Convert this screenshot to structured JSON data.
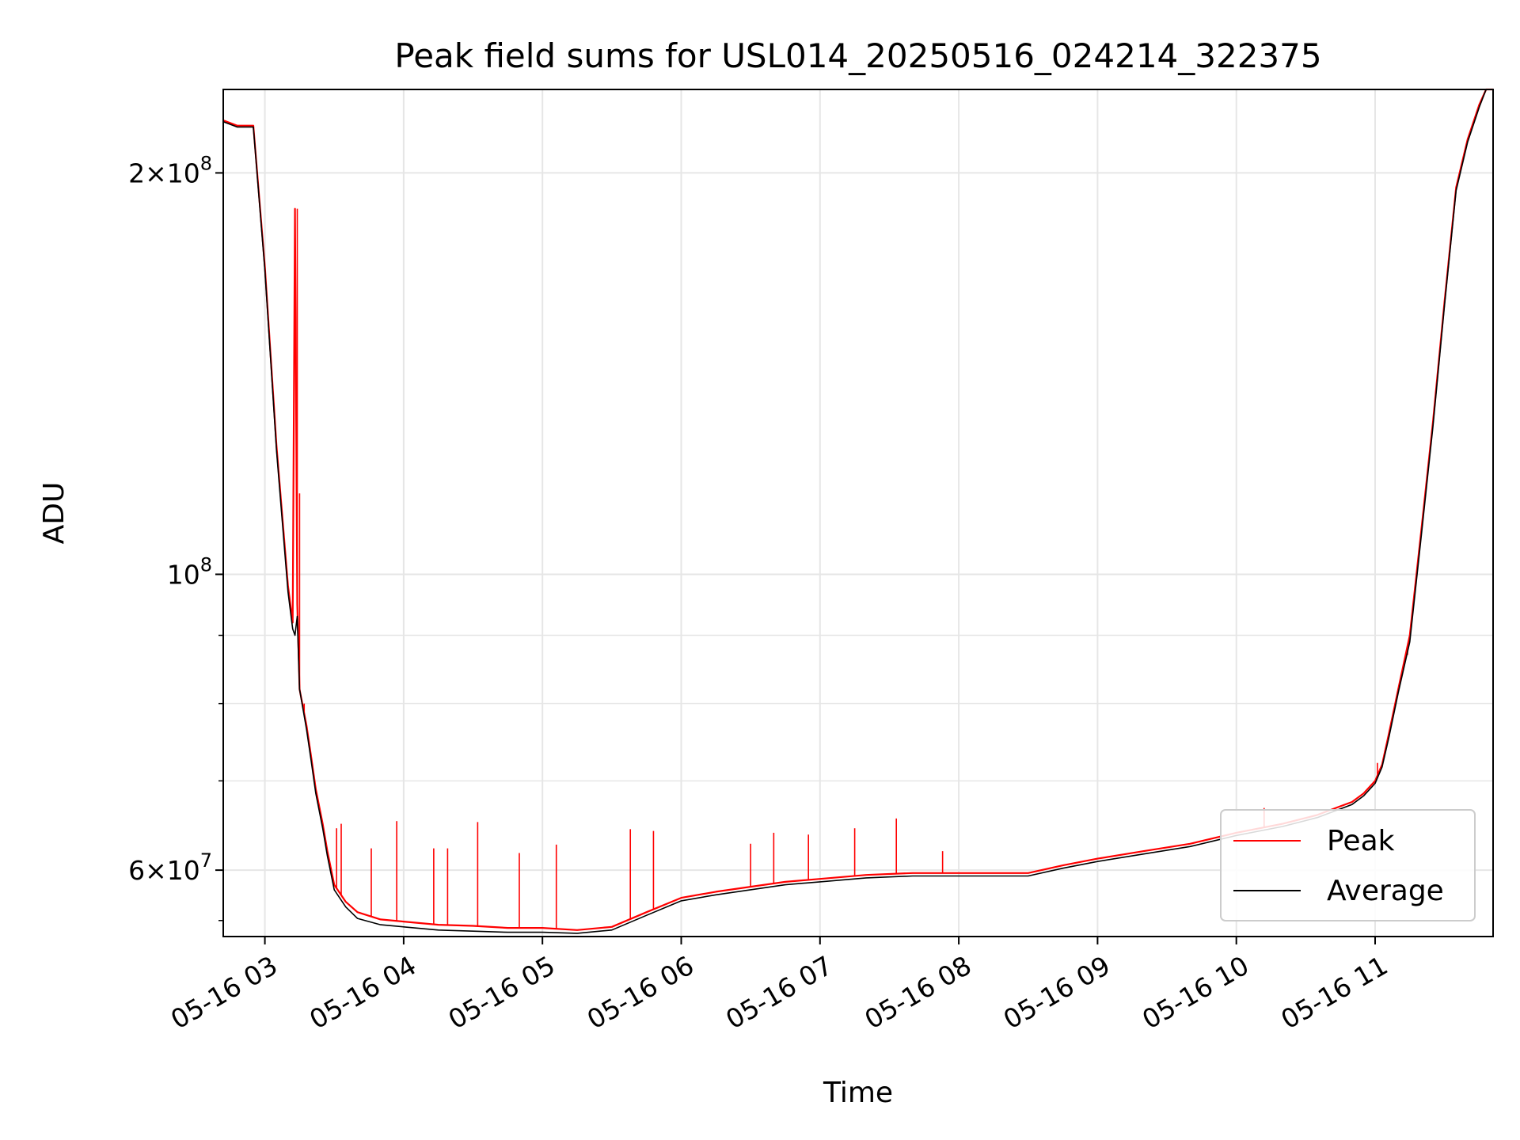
{
  "chart_data": {
    "type": "line",
    "title": "Peak field sums for USL014_20250516_024214_322375",
    "xlabel": "Time",
    "ylabel": "ADU",
    "yscale": "log",
    "ylim": [
      53500000,
      231000000
    ],
    "xlim": [
      "05-16 02:42",
      "05-16 11:51"
    ],
    "grid": true,
    "legend_position": "lower right",
    "x_ticks": [
      "05-16 03",
      "05-16 04",
      "05-16 05",
      "05-16 06",
      "05-16 07",
      "05-16 08",
      "05-16 09",
      "05-16 10",
      "05-16 11"
    ],
    "y_ticks": [
      {
        "value": 200000000,
        "base": "2×10",
        "exp": "8"
      },
      {
        "value": 100000000,
        "base": "10",
        "exp": "8"
      },
      {
        "value": 60000000,
        "base": "6×10",
        "exp": "7"
      }
    ],
    "series": [
      {
        "name": "Peak",
        "color": "#ff0000",
        "x": [
          "05-16 02:42",
          "05-16 02:48",
          "05-16 02:50",
          "05-16 02:52",
          "05-16 02:55",
          "05-16 03:00",
          "05-16 03:05",
          "05-16 03:10",
          "05-16 03:12",
          "05-16 03:13",
          "05-16 03:14",
          "05-16 03:15",
          "05-16 03:18",
          "05-16 03:20",
          "05-16 03:22",
          "05-16 03:25",
          "05-16 03:27",
          "05-16 03:30",
          "05-16 03:35",
          "05-16 03:40",
          "05-16 03:50",
          "05-16 04:00",
          "05-16 04:15",
          "05-16 04:30",
          "05-16 04:45",
          "05-16 05:00",
          "05-16 05:15",
          "05-16 05:30",
          "05-16 05:45",
          "05-16 06:00",
          "05-16 06:15",
          "05-16 06:30",
          "05-16 06:45",
          "05-16 07:00",
          "05-16 07:20",
          "05-16 07:40",
          "05-16 08:00",
          "05-16 08:20",
          "05-16 08:30",
          "05-16 08:45",
          "05-16 09:00",
          "05-16 09:20",
          "05-16 09:40",
          "05-16 10:00",
          "05-16 10:20",
          "05-16 10:35",
          "05-16 10:40",
          "05-16 10:45",
          "05-16 10:50",
          "05-16 10:55",
          "05-16 11:00",
          "05-16 11:03",
          "05-16 11:06",
          "05-16 11:10",
          "05-16 11:15",
          "05-16 11:20",
          "05-16 11:25",
          "05-16 11:30",
          "05-16 11:35",
          "05-16 11:40",
          "05-16 11:45",
          "05-16 11:48",
          "05-16 11:51"
        ],
        "y": [
          219000000,
          217000000,
          217000000,
          217000000,
          217000000,
          170000000,
          125000000,
          98000000,
          92000000,
          188000000,
          95000000,
          82000000,
          77000000,
          73000000,
          69000000,
          65000000,
          62000000,
          58500000,
          56800000,
          55800000,
          55100000,
          54900000,
          54600000,
          54500000,
          54300000,
          54300000,
          54100000,
          54400000,
          55800000,
          57200000,
          57800000,
          58300000,
          58800000,
          59100000,
          59500000,
          59700000,
          59700000,
          59700000,
          59700000,
          60500000,
          61200000,
          62000000,
          62800000,
          64000000,
          65000000,
          66000000,
          66500000,
          67000000,
          67500000,
          68500000,
          70000000,
          72000000,
          76000000,
          82000000,
          90000000,
          108000000,
          130000000,
          160000000,
          195000000,
          212000000,
          225000000,
          231000000,
          231000000
        ],
        "spikes": [
          {
            "x": "05-16 03:14",
            "y": 188000000
          },
          {
            "x": "05-16 03:15",
            "y": 115000000
          },
          {
            "x": "05-16 03:17",
            "y": 80000000
          },
          {
            "x": "05-16 03:31",
            "y": 64500000
          },
          {
            "x": "05-16 03:33",
            "y": 65000000
          },
          {
            "x": "05-16 03:46",
            "y": 62300000
          },
          {
            "x": "05-16 03:57",
            "y": 65300000
          },
          {
            "x": "05-16 04:13",
            "y": 62300000
          },
          {
            "x": "05-16 04:19",
            "y": 62300000
          },
          {
            "x": "05-16 04:32",
            "y": 65200000
          },
          {
            "x": "05-16 04:50",
            "y": 61800000
          },
          {
            "x": "05-16 05:06",
            "y": 62700000
          },
          {
            "x": "05-16 05:38",
            "y": 64400000
          },
          {
            "x": "05-16 05:48",
            "y": 64200000
          },
          {
            "x": "05-16 06:30",
            "y": 62800000
          },
          {
            "x": "05-16 06:40",
            "y": 64000000
          },
          {
            "x": "05-16 06:55",
            "y": 63800000
          },
          {
            "x": "05-16 07:15",
            "y": 64500000
          },
          {
            "x": "05-16 07:33",
            "y": 65600000
          },
          {
            "x": "05-16 07:53",
            "y": 62000000
          },
          {
            "x": "05-16 10:12",
            "y": 66800000
          },
          {
            "x": "05-16 11:01",
            "y": 72200000
          },
          {
            "x": "05-16 11:09",
            "y": 80000000
          },
          {
            "x": "05-16 11:14",
            "y": 87000000
          }
        ]
      },
      {
        "name": "Average",
        "color": "#000000",
        "x": [
          "05-16 02:42",
          "05-16 02:48",
          "05-16 02:50",
          "05-16 02:52",
          "05-16 02:55",
          "05-16 03:00",
          "05-16 03:05",
          "05-16 03:10",
          "05-16 03:12",
          "05-16 03:13",
          "05-16 03:14",
          "05-16 03:15",
          "05-16 03:18",
          "05-16 03:20",
          "05-16 03:22",
          "05-16 03:25",
          "05-16 03:27",
          "05-16 03:30",
          "05-16 03:35",
          "05-16 03:40",
          "05-16 03:50",
          "05-16 04:00",
          "05-16 04:15",
          "05-16 04:30",
          "05-16 04:45",
          "05-16 05:00",
          "05-16 05:15",
          "05-16 05:30",
          "05-16 05:45",
          "05-16 06:00",
          "05-16 06:15",
          "05-16 06:30",
          "05-16 06:45",
          "05-16 07:00",
          "05-16 07:20",
          "05-16 07:40",
          "05-16 08:00",
          "05-16 08:20",
          "05-16 08:30",
          "05-16 08:45",
          "05-16 09:00",
          "05-16 09:20",
          "05-16 09:40",
          "05-16 10:00",
          "05-16 10:20",
          "05-16 10:35",
          "05-16 10:40",
          "05-16 10:45",
          "05-16 10:50",
          "05-16 10:55",
          "05-16 11:00",
          "05-16 11:03",
          "05-16 11:06",
          "05-16 11:10",
          "05-16 11:15",
          "05-16 11:20",
          "05-16 11:25",
          "05-16 11:30",
          "05-16 11:35",
          "05-16 11:40",
          "05-16 11:45",
          "05-16 11:48",
          "05-16 11:51"
        ],
        "y": [
          218500000,
          216500000,
          216500000,
          216500000,
          216500000,
          169000000,
          124000000,
          97000000,
          91000000,
          90000000,
          93000000,
          82000000,
          76500000,
          72500000,
          68500000,
          64500000,
          61500000,
          58000000,
          56300000,
          55200000,
          54600000,
          54400000,
          54100000,
          54000000,
          53900000,
          53900000,
          53800000,
          54100000,
          55500000,
          56900000,
          57500000,
          58000000,
          58500000,
          58800000,
          59200000,
          59400000,
          59400000,
          59400000,
          59400000,
          60200000,
          60900000,
          61700000,
          62500000,
          63700000,
          64700000,
          65700000,
          66200000,
          66700000,
          67200000,
          68200000,
          69700000,
          71700000,
          75500000,
          81500000,
          89000000,
          107000000,
          129000000,
          159000000,
          194000000,
          211000000,
          224000000,
          231000000,
          231000000
        ]
      }
    ]
  }
}
